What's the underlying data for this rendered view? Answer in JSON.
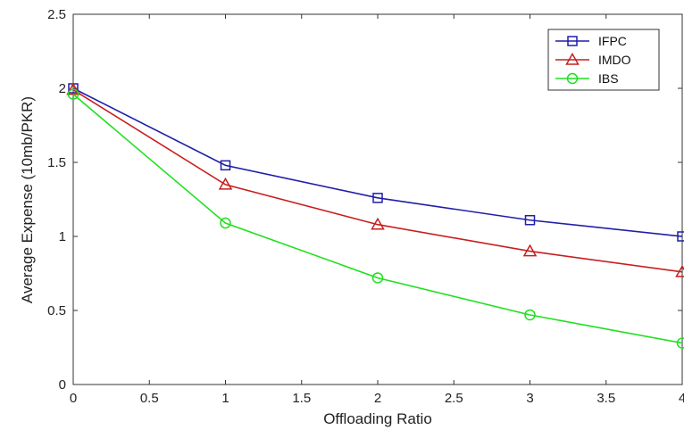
{
  "chart_data": {
    "type": "line",
    "title": "",
    "xlabel": "Offloading Ratio",
    "ylabel": "Average Expense (10mb/PKR)",
    "xlim": [
      0,
      4
    ],
    "ylim": [
      0,
      2.5
    ],
    "x_ticks": [
      "0",
      "0.5",
      "1",
      "1.5",
      "2",
      "2.5",
      "3",
      "3.5",
      "4"
    ],
    "y_ticks": [
      "0",
      "0.5",
      "1",
      "1.5",
      "2",
      "2.5"
    ],
    "grid": false,
    "legend_position": "top-right",
    "x": [
      0,
      1,
      2,
      3,
      4
    ],
    "series": [
      {
        "name": "IFPC",
        "color": "#1f1fa8",
        "marker": "square",
        "values": [
          2.0,
          1.48,
          1.26,
          1.11,
          1.0
        ]
      },
      {
        "name": "IMDO",
        "color": "#c81e1e",
        "marker": "triangle",
        "values": [
          1.99,
          1.35,
          1.08,
          0.9,
          0.76
        ]
      },
      {
        "name": "IBS",
        "color": "#1ee01e",
        "marker": "circle",
        "values": [
          1.96,
          1.09,
          0.72,
          0.47,
          0.28
        ]
      }
    ]
  }
}
